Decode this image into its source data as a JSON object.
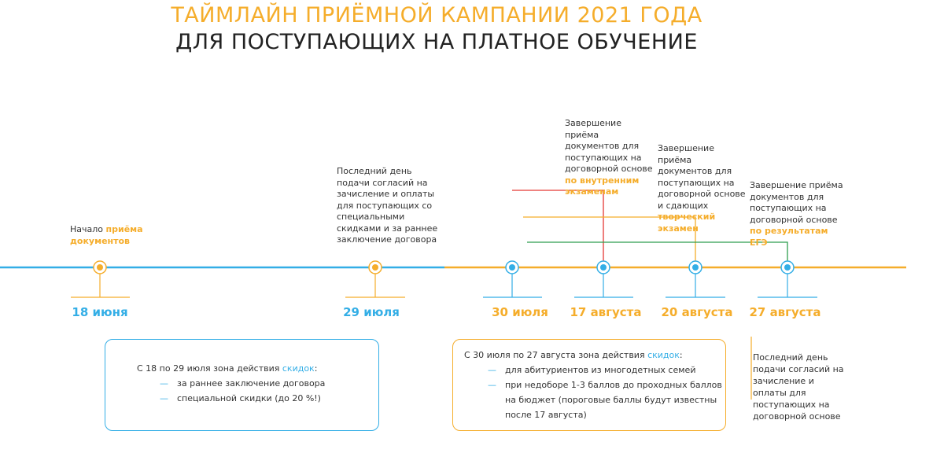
{
  "title": {
    "line1": "ТАЙМЛАЙН ПРИЁМНОЙ КАМПАНИИ 2021 ГОДА",
    "line2": "ДЛЯ ПОСТУПАЮЩИХ НА ПЛАТНОЕ ОБУЧЕНИЕ"
  },
  "colors": {
    "blue": "#33aee6",
    "orange": "#f5ad2b",
    "red": "#e53935",
    "green": "#2e9e4f"
  },
  "milestones": [
    {
      "date": "18 июня",
      "note_plain": "Начало ",
      "note_highlight": "приёма документов"
    },
    {
      "date": "29 июля",
      "note_plain": "Последний день подачи согласий на зачисление и оплаты для поступающих со специальными скидками и за раннее заключение договора"
    },
    {
      "date": "30 июля"
    },
    {
      "date": "17 августа",
      "note_plain": "Завершение приёма документов для поступающих на договорной основе ",
      "note_highlight": "по внутренним экзаменам"
    },
    {
      "date": "20 августа",
      "note_plain": "Завершение приёма документов для поступающих на договорной основе и сдающих ",
      "note_highlight": "творческий экзамен"
    },
    {
      "date": "27 августа",
      "note_plain": "Завершение приёма документов для поступающих на договорной основе ",
      "note_highlight": "по результатам ЕГЭ",
      "note_below": "Последний день подачи согласий на зачисление и оплаты для поступающих на договорной основе"
    }
  ],
  "discount_box_1": {
    "intro": "С 18 по 29 июля зона действия ",
    "intro_highlight": "скидок",
    "intro_end": ":",
    "items": [
      "за раннее заключение договора",
      "специальной скидки (до 20 %!)"
    ]
  },
  "discount_box_2": {
    "intro": "С 30 июля по 27 августа зона действия ",
    "intro_highlight": "скидок",
    "intro_end": ":",
    "items": [
      "для абитуриентов из многодетных семей",
      "при недоборе 1-3 баллов до проходных баллов на бюджет (пороговые баллы будут известны после 17 августа)"
    ]
  },
  "dash": "—"
}
